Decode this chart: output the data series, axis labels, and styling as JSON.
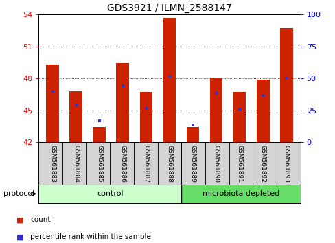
{
  "title": "GDS3921 / ILMN_2588147",
  "samples": [
    "GSM561883",
    "GSM561884",
    "GSM561885",
    "GSM561886",
    "GSM561887",
    "GSM561888",
    "GSM561889",
    "GSM561890",
    "GSM561891",
    "GSM561892",
    "GSM561893"
  ],
  "red_tops": [
    49.3,
    46.8,
    43.4,
    49.4,
    46.7,
    53.7,
    43.4,
    48.1,
    46.7,
    47.9,
    52.7
  ],
  "blue_values": [
    46.8,
    45.5,
    44.0,
    47.3,
    45.2,
    48.2,
    43.6,
    46.6,
    45.1,
    46.4,
    48.1
  ],
  "y_min": 42,
  "y_max": 54,
  "y_ticks_left": [
    42,
    45,
    48,
    51,
    54
  ],
  "y_ticks_right": [
    0,
    25,
    50,
    75,
    100
  ],
  "bar_color": "#cc2200",
  "blue_color": "#3333cc",
  "control_color": "#ccffcc",
  "microbiota_color": "#66dd66",
  "grid_color": "#aaaaaa",
  "control_samples": 6,
  "microbiota_samples": 5,
  "control_label": "control",
  "microbiota_label": "microbiota depleted",
  "protocol_label": "protocol",
  "legend_count": "count",
  "legend_pct": "percentile rank within the sample",
  "title_fontsize": 10,
  "tick_fontsize": 8,
  "sample_fontsize": 6.5,
  "proto_fontsize": 8,
  "legend_fontsize": 7.5
}
